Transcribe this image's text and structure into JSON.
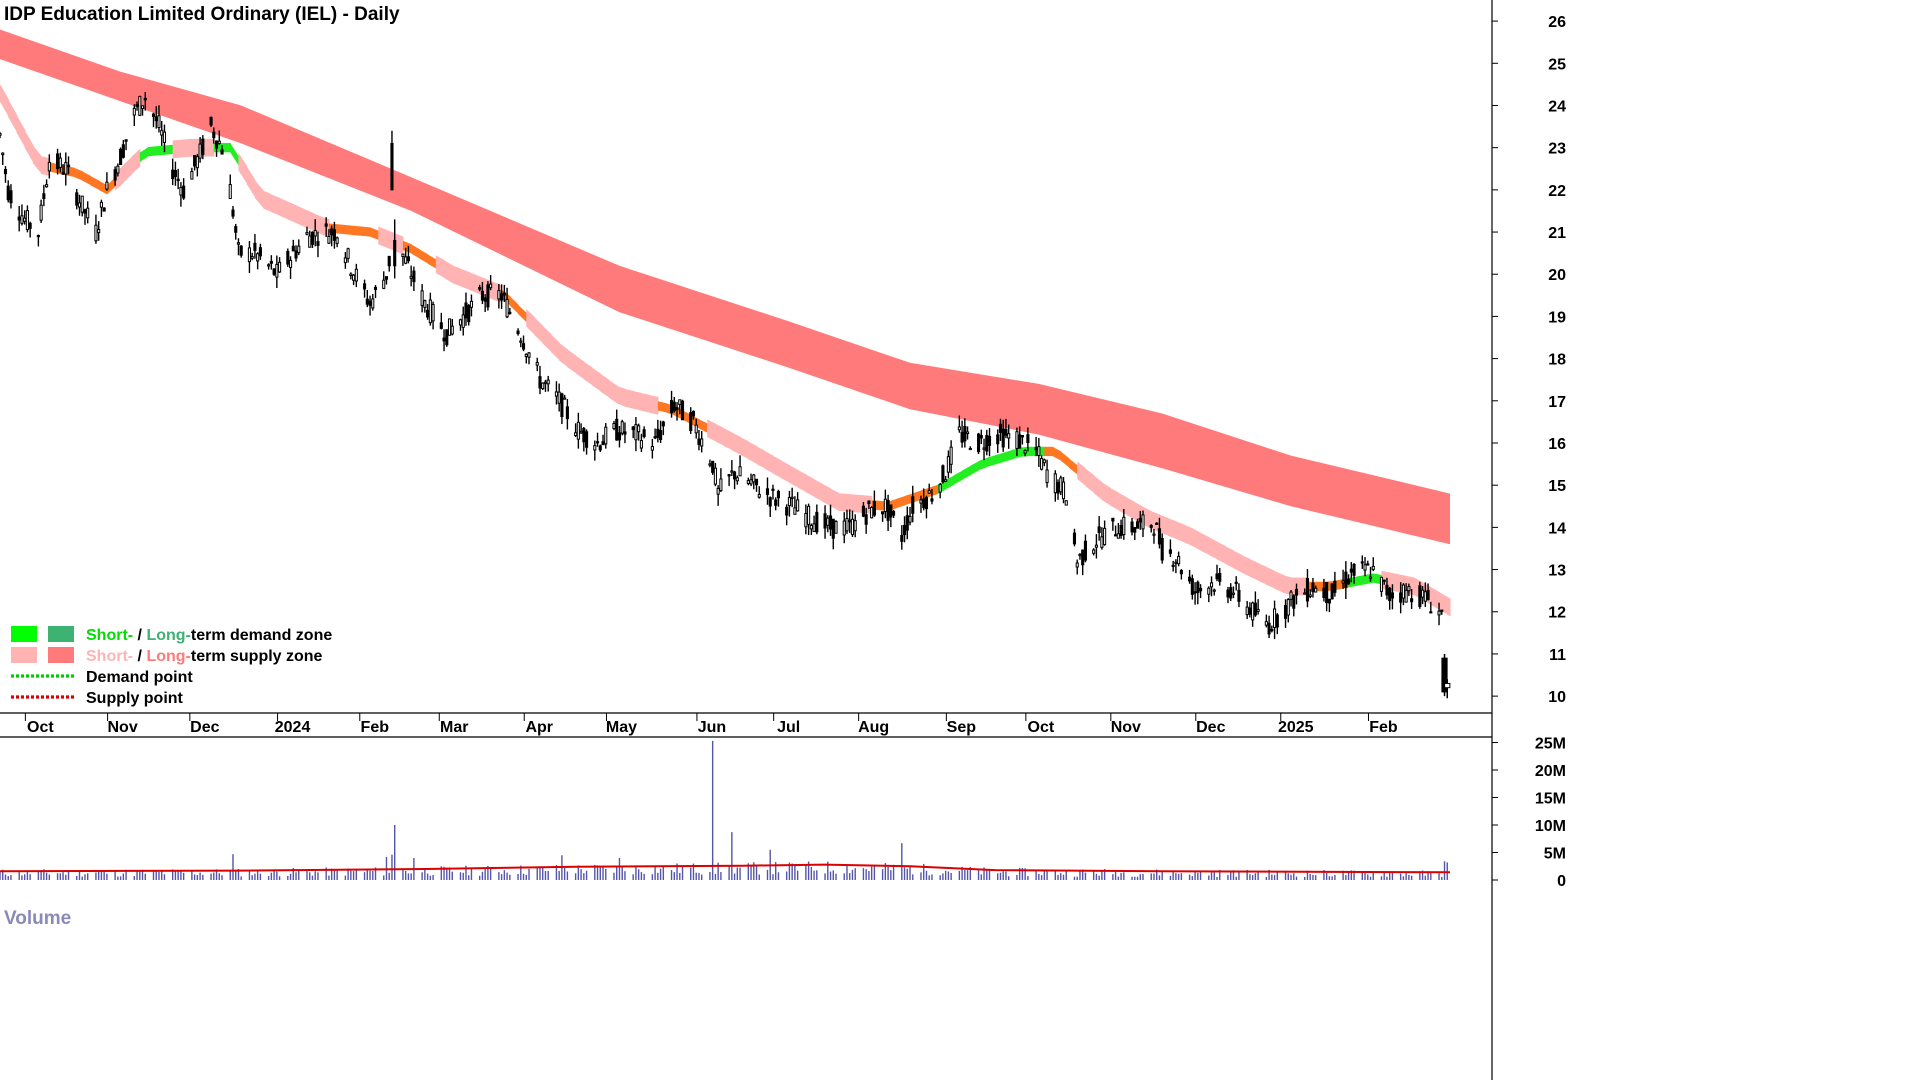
{
  "chart_data": {
    "type": "candlestick",
    "title": "IDP Education Limited Ordinary (IEL) - Daily",
    "price_axis": {
      "ylim": [
        9.6,
        26.5
      ],
      "ticks": [
        "10",
        "11",
        "12",
        "13",
        "14",
        "15",
        "16",
        "17",
        "18",
        "19",
        "20",
        "21",
        "22",
        "23",
        "24",
        "25",
        "26"
      ]
    },
    "volume_axis": {
      "label": "Volume",
      "ylim": [
        0,
        26
      ],
      "ticks": [
        {
          "value": 0,
          "label": "0"
        },
        {
          "value": 5,
          "label": "5M"
        },
        {
          "value": 10,
          "label": "10M"
        },
        {
          "value": 15,
          "label": "15M"
        },
        {
          "value": 20,
          "label": "20M"
        },
        {
          "value": 25,
          "label": "25M"
        }
      ]
    },
    "x_axis": {
      "start": "2023-09-18",
      "end": "2025-02-28",
      "labels": [
        {
          "text": "Oct",
          "date": "2023-10-02"
        },
        {
          "text": "Nov",
          "date": "2023-11-01"
        },
        {
          "text": "Dec",
          "date": "2023-12-01"
        },
        {
          "text": "2024",
          "date": "2024-01-02"
        },
        {
          "text": "Feb",
          "date": "2024-02-01"
        },
        {
          "text": "Mar",
          "date": "2024-03-01"
        },
        {
          "text": "Apr",
          "date": "2024-04-01"
        },
        {
          "text": "May",
          "date": "2024-05-01"
        },
        {
          "text": "Jun",
          "date": "2024-06-03"
        },
        {
          "text": "Jul",
          "date": "2024-07-01"
        },
        {
          "text": "Aug",
          "date": "2024-08-01"
        },
        {
          "text": "Sep",
          "date": "2024-09-02"
        },
        {
          "text": "Oct",
          "date": "2024-10-01"
        },
        {
          "text": "Nov",
          "date": "2024-11-01"
        },
        {
          "text": "Dec",
          "date": "2024-12-02"
        },
        {
          "text": "2025",
          "date": "2025-01-02"
        },
        {
          "text": "Feb",
          "date": "2025-02-03"
        }
      ]
    },
    "price_path": [
      [
        "2023-09-18",
        23.3
      ],
      [
        "2023-09-21",
        22.0
      ],
      [
        "2023-09-27",
        21.3
      ],
      [
        "2023-10-02",
        21.0
      ],
      [
        "2023-10-06",
        22.7
      ],
      [
        "2023-10-12",
        22.5
      ],
      [
        "2023-10-18",
        21.6
      ],
      [
        "2023-10-23",
        21.0
      ],
      [
        "2023-10-27",
        22.0
      ],
      [
        "2023-11-01",
        22.8
      ],
      [
        "2023-11-06",
        23.8
      ],
      [
        "2023-11-10",
        24.2
      ],
      [
        "2023-11-15",
        23.5
      ],
      [
        "2023-11-20",
        22.5
      ],
      [
        "2023-11-24",
        22.0
      ],
      [
        "2023-11-29",
        22.7
      ],
      [
        "2023-12-04",
        23.5
      ],
      [
        "2023-12-08",
        23.0
      ],
      [
        "2023-12-11",
        22.0
      ],
      [
        "2023-12-14",
        20.5
      ],
      [
        "2023-12-20",
        20.5
      ],
      [
        "2023-12-28",
        20.0
      ],
      [
        "2024-01-08",
        20.9
      ],
      [
        "2024-01-15",
        21.0
      ],
      [
        "2024-01-19",
        21.0
      ],
      [
        "2024-01-24",
        20.2
      ],
      [
        "2024-01-31",
        19.3
      ],
      [
        "2024-02-06",
        20.0
      ],
      [
        "2024-02-09",
        20.9
      ],
      [
        "2024-02-13",
        20.3
      ],
      [
        "2024-02-20",
        19.3
      ],
      [
        "2024-02-28",
        18.6
      ],
      [
        "2024-03-05",
        19.0
      ],
      [
        "2024-03-12",
        19.5
      ],
      [
        "2024-03-19",
        19.5
      ],
      [
        "2024-03-26",
        18.6
      ],
      [
        "2024-04-02",
        17.5
      ],
      [
        "2024-04-09",
        17.0
      ],
      [
        "2024-04-16",
        16.3
      ],
      [
        "2024-04-23",
        16.0
      ],
      [
        "2024-04-30",
        16.3
      ],
      [
        "2024-05-07",
        16.2
      ],
      [
        "2024-05-14",
        16.0
      ],
      [
        "2024-05-21",
        16.9
      ],
      [
        "2024-05-28",
        16.5
      ],
      [
        "2024-06-04",
        15.5
      ],
      [
        "2024-06-06",
        14.8
      ],
      [
        "2024-06-12",
        15.3
      ],
      [
        "2024-06-19",
        15.0
      ],
      [
        "2024-06-26",
        14.7
      ],
      [
        "2024-07-03",
        14.5
      ],
      [
        "2024-07-10",
        14.2
      ],
      [
        "2024-07-17",
        14.0
      ],
      [
        "2024-07-24",
        14.0
      ],
      [
        "2024-07-31",
        14.4
      ],
      [
        "2024-08-06",
        14.5
      ],
      [
        "2024-08-12",
        13.8
      ],
      [
        "2024-08-16",
        14.5
      ],
      [
        "2024-08-23",
        14.8
      ],
      [
        "2024-08-28",
        15.3
      ],
      [
        "2024-09-02",
        16.2
      ],
      [
        "2024-09-09",
        16.0
      ],
      [
        "2024-09-16",
        16.2
      ],
      [
        "2024-09-23",
        16.1
      ],
      [
        "2024-09-30",
        15.8
      ],
      [
        "2024-10-04",
        15.3
      ],
      [
        "2024-10-11",
        14.8
      ],
      [
        "2024-10-15",
        13.2
      ],
      [
        "2024-10-22",
        13.7
      ],
      [
        "2024-10-29",
        14.0
      ],
      [
        "2024-11-05",
        14.0
      ],
      [
        "2024-11-12",
        14.1
      ],
      [
        "2024-11-15",
        13.5
      ],
      [
        "2024-11-20",
        13.3
      ],
      [
        "2024-11-27",
        12.5
      ],
      [
        "2024-12-04",
        12.7
      ],
      [
        "2024-12-11",
        12.5
      ],
      [
        "2024-12-18",
        12.0
      ],
      [
        "2024-12-24",
        11.7
      ],
      [
        "2025-01-02",
        12.3
      ],
      [
        "2025-01-09",
        12.6
      ],
      [
        "2025-01-16",
        12.4
      ],
      [
        "2025-01-23",
        12.9
      ],
      [
        "2025-01-30",
        13.0
      ],
      [
        "2025-02-06",
        12.4
      ],
      [
        "2025-02-13",
        12.5
      ],
      [
        "2025-02-20",
        12.3
      ],
      [
        "2025-02-24",
        12.0
      ]
    ],
    "final_candles": [
      {
        "date": "2025-02-26",
        "open": 10.9,
        "high": 11.0,
        "low": 10.0,
        "close": 10.1
      },
      {
        "date": "2025-02-27",
        "open": 10.2,
        "high": 10.4,
        "low": 9.95,
        "close": 10.3
      }
    ],
    "spikes": [
      {
        "date": "2024-02-08",
        "open": 23.1,
        "high": 23.4,
        "low": 22.0,
        "close": 22.0
      },
      {
        "date": "2024-02-09",
        "open": 20.8,
        "high": 21.3,
        "low": 19.9,
        "close": 20.2
      }
    ],
    "long_term_zone": {
      "color": "#ff7b7b",
      "upper": [
        [
          "2023-09-18",
          25.8
        ],
        [
          "2023-11-01",
          24.8
        ],
        [
          "2023-12-15",
          24.0
        ],
        [
          "2024-02-15",
          22.3
        ],
        [
          "2024-05-01",
          20.2
        ],
        [
          "2024-07-01",
          18.9
        ],
        [
          "2024-08-15",
          17.9
        ],
        [
          "2024-10-01",
          17.4
        ],
        [
          "2024-11-15",
          16.7
        ],
        [
          "2025-01-01",
          15.7
        ],
        [
          "2025-02-28",
          14.8
        ]
      ],
      "lower": [
        [
          "2023-09-18",
          25.1
        ],
        [
          "2023-11-01",
          24.1
        ],
        [
          "2023-12-15",
          23.1
        ],
        [
          "2024-02-15",
          21.5
        ],
        [
          "2024-05-01",
          19.1
        ],
        [
          "2024-07-01",
          17.8
        ],
        [
          "2024-08-15",
          16.8
        ],
        [
          "2024-10-01",
          16.2
        ],
        [
          "2024-11-15",
          15.4
        ],
        [
          "2025-01-01",
          14.5
        ],
        [
          "2025-02-28",
          13.6
        ]
      ]
    },
    "short_term_zone": {
      "supply_color": "#ffb3b3",
      "demand_color": "#22ee22",
      "transition_color": "#ff7722",
      "path": [
        [
          "2023-09-18",
          24.3
        ],
        [
          "2023-10-02",
          22.6
        ],
        [
          "2023-10-16",
          22.4
        ],
        [
          "2023-10-27",
          22.0
        ],
        [
          "2023-11-10",
          22.9
        ],
        [
          "2023-11-27",
          23.0
        ],
        [
          "2023-12-11",
          23.0
        ],
        [
          "2023-12-22",
          21.8
        ],
        [
          "2024-01-15",
          21.1
        ],
        [
          "2024-01-31",
          21.0
        ],
        [
          "2024-02-15",
          20.6
        ],
        [
          "2024-03-01",
          20.0
        ],
        [
          "2024-03-20",
          19.5
        ],
        [
          "2024-04-10",
          18.1
        ],
        [
          "2024-05-01",
          17.1
        ],
        [
          "2024-05-20",
          16.8
        ],
        [
          "2024-06-15",
          15.9
        ],
        [
          "2024-07-01",
          15.3
        ],
        [
          "2024-07-20",
          14.6
        ],
        [
          "2024-08-07",
          14.5
        ],
        [
          "2024-08-25",
          14.9
        ],
        [
          "2024-09-10",
          15.5
        ],
        [
          "2024-09-25",
          15.8
        ],
        [
          "2024-10-07",
          15.8
        ],
        [
          "2024-10-25",
          14.8
        ],
        [
          "2024-11-10",
          14.2
        ],
        [
          "2024-11-25",
          13.8
        ],
        [
          "2024-12-15",
          13.1
        ],
        [
          "2024-12-31",
          12.6
        ],
        [
          "2025-01-15",
          12.6
        ],
        [
          "2025-01-31",
          12.8
        ],
        [
          "2025-02-15",
          12.6
        ],
        [
          "2025-02-28",
          12.1
        ]
      ],
      "demand_ranges": [
        [
          "2023-11-08",
          "2023-11-20"
        ],
        [
          "2023-12-05",
          "2023-12-14"
        ],
        [
          "2024-08-26",
          "2024-10-03"
        ],
        [
          "2025-01-22",
          "2025-02-03"
        ]
      ],
      "transition_ranges": [
        [
          "2023-10-05",
          "2023-10-30"
        ],
        [
          "2024-01-15",
          "2024-02-01"
        ],
        [
          "2024-02-12",
          "2024-02-22"
        ],
        [
          "2024-03-18",
          "2024-03-28"
        ],
        [
          "2024-05-14",
          "2024-05-31"
        ],
        [
          "2024-07-31",
          "2024-08-26"
        ],
        [
          "2024-10-03",
          "2024-10-14"
        ],
        [
          "2025-01-06",
          "2025-01-22"
        ]
      ]
    },
    "volume_average": [
      [
        "2023-09-18",
        1.6
      ],
      [
        "2023-12-15",
        1.7
      ],
      [
        "2024-02-20",
        2.0
      ],
      [
        "2024-04-15",
        2.4
      ],
      [
        "2024-06-15",
        2.6
      ],
      [
        "2024-07-15",
        2.8
      ],
      [
        "2024-08-15",
        2.5
      ],
      [
        "2024-09-15",
        1.8
      ],
      [
        "2024-11-15",
        1.6
      ],
      [
        "2025-02-28",
        1.4
      ]
    ],
    "volume_spikes": [
      {
        "date": "2024-06-04",
        "value": 25.3
      },
      {
        "date": "2024-02-09",
        "value": 10.0
      },
      {
        "date": "2024-06-11",
        "value": 8.7
      },
      {
        "date": "2024-08-12",
        "value": 6.7
      },
      {
        "date": "2024-06-25",
        "value": 5.5
      },
      {
        "date": "2024-02-08",
        "value": 4.6
      },
      {
        "date": "2024-02-06",
        "value": 4.2
      },
      {
        "date": "2024-05-01",
        "value": 4.0
      },
      {
        "date": "2024-04-10",
        "value": 4.5
      },
      {
        "date": "2023-12-12",
        "value": 4.7
      },
      {
        "date": "2024-02-16",
        "value": 4.0
      },
      {
        "date": "2025-02-27",
        "value": 3.2
      },
      {
        "date": "2025-02-26",
        "value": 3.4
      }
    ],
    "legend": {
      "items": [
        {
          "swatches": [
            "#00ff00",
            "#3cb371"
          ],
          "label_parts": [
            {
              "text": "Short-",
              "color": "#00dd00"
            },
            {
              "text": " / ",
              "color": "#000000"
            },
            {
              "text": "Long-",
              "color": "#3cb371"
            },
            {
              "text": "term demand zone",
              "color": "#000000"
            }
          ]
        },
        {
          "swatches": [
            "#ffb3b3",
            "#ff7b7b"
          ],
          "label_parts": [
            {
              "text": "Short-",
              "color": "#ffb3b3"
            },
            {
              "text": " / ",
              "color": "#000000"
            },
            {
              "text": "Long-",
              "color": "#ff7b7b"
            },
            {
              "text": "term supply zone",
              "color": "#000000"
            }
          ]
        },
        {
          "line_color": "#00cc00",
          "label_parts": [
            {
              "text": "Demand point",
              "color": "#000000"
            }
          ]
        },
        {
          "line_color": "#dd0000",
          "label_parts": [
            {
              "text": "Supply point",
              "color": "#000000"
            }
          ]
        }
      ]
    }
  }
}
